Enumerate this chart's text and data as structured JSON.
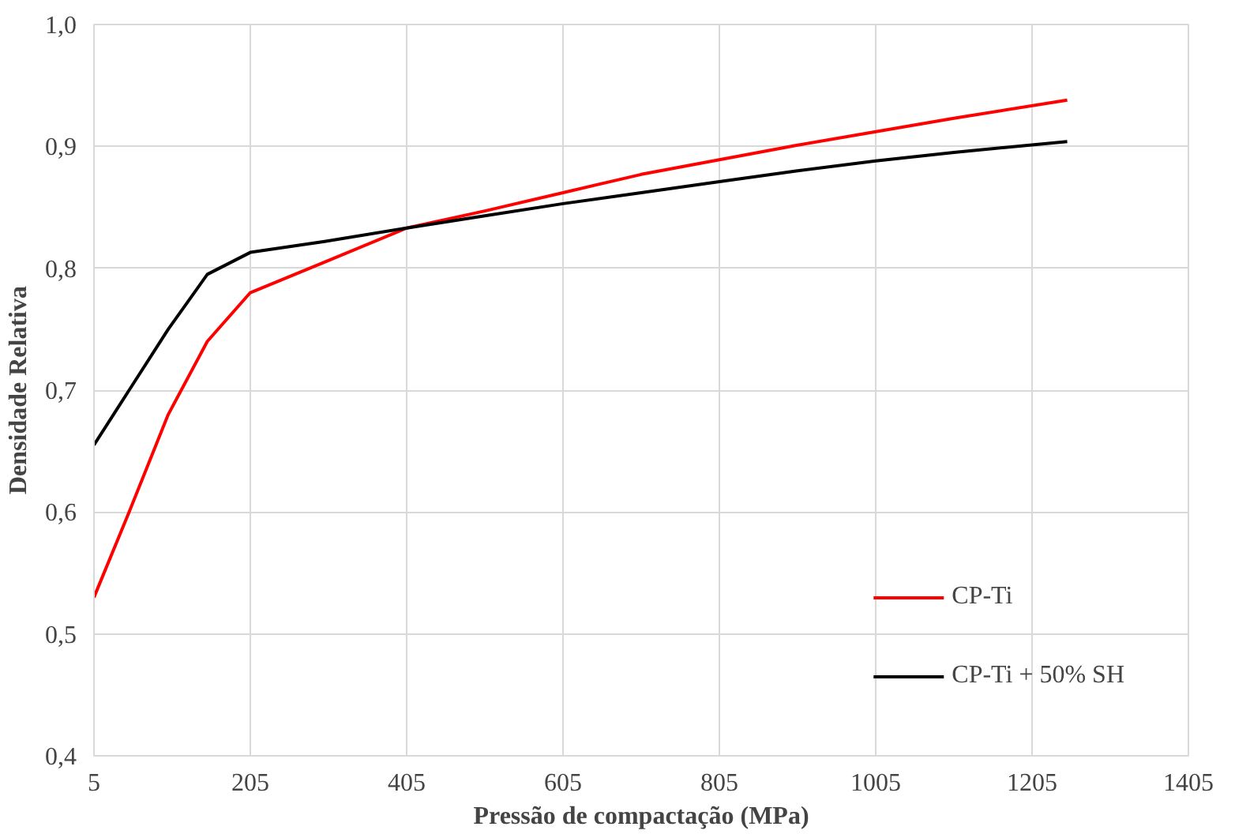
{
  "chart_data": {
    "type": "line",
    "xlabel": "Pressão de compactação (MPa)",
    "ylabel": "Densidade Relativa",
    "xlim": [
      5,
      1405
    ],
    "xticks": [
      5,
      205,
      405,
      605,
      805,
      1005,
      1205,
      1405
    ],
    "ylim": [
      0.4,
      1.0
    ],
    "yticks": [
      {
        "value": 0.4,
        "label": "0,4"
      },
      {
        "value": 0.5,
        "label": "0,5"
      },
      {
        "value": 0.6,
        "label": "0,6"
      },
      {
        "value": 0.7,
        "label": "0,7"
      },
      {
        "value": 0.8,
        "label": "0,8"
      },
      {
        "value": 0.9,
        "label": "0,9"
      },
      {
        "value": 1.0,
        "label": "1,0"
      }
    ],
    "grid": true,
    "legend": "bottom right",
    "line_style": "solid",
    "x": [
      5,
      50,
      100,
      150,
      205,
      300,
      405,
      505,
      605,
      705,
      805,
      905,
      1005,
      1105,
      1250
    ],
    "series": [
      {
        "name": "CP-Ti",
        "color": "#ff0000",
        "values": [
          0.53,
          0.6,
          0.68,
          0.74,
          0.78,
          0.805,
          0.833,
          0.847,
          0.862,
          0.877,
          0.889,
          0.901,
          0.912,
          0.923,
          0.938
        ]
      },
      {
        "name": "CP-Ti + 50% SH",
        "color": "#000000",
        "values": [
          0.655,
          0.7,
          0.75,
          0.795,
          0.813,
          0.822,
          0.833,
          0.843,
          0.853,
          0.862,
          0.871,
          0.88,
          0.888,
          0.895,
          0.904
        ]
      }
    ]
  }
}
